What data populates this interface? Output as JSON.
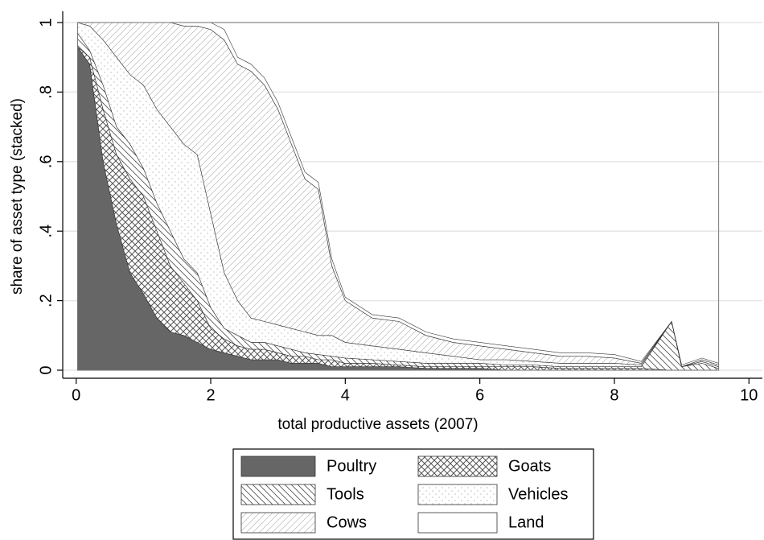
{
  "chart_data": {
    "type": "stacked-area",
    "x_label": "total productive assets (2007)",
    "y_label": "share of asset type (stacked)",
    "xlim": [
      -0.2,
      10.2
    ],
    "xticks": [
      0,
      2,
      4,
      6,
      8,
      10
    ],
    "ylim": [
      0,
      1
    ],
    "yticks": [
      0,
      {
        "value": 0.2,
        "label": ".2"
      },
      {
        "value": 0.4,
        "label": ".4"
      },
      {
        "value": 0.6,
        "label": ".6"
      },
      {
        "value": 0.8,
        "label": ".8"
      },
      1
    ],
    "grid": true,
    "legend": "bottom",
    "x": [
      0.02,
      0.2,
      0.4,
      0.6,
      0.8,
      1.0,
      1.2,
      1.4,
      1.6,
      1.8,
      2.0,
      2.2,
      2.4,
      2.6,
      2.8,
      3.0,
      3.2,
      3.4,
      3.6,
      3.8,
      4.0,
      4.4,
      4.8,
      5.2,
      5.6,
      6.0,
      6.4,
      6.8,
      7.2,
      7.6,
      8.0,
      8.4,
      8.85,
      9.0,
      9.3,
      9.55
    ],
    "series": [
      {
        "name": "Poultry",
        "color": "#666666",
        "pattern": "solid",
        "values": [
          0.93,
          0.88,
          0.6,
          0.42,
          0.28,
          0.22,
          0.15,
          0.11,
          0.1,
          0.08,
          0.06,
          0.05,
          0.04,
          0.03,
          0.03,
          0.03,
          0.02,
          0.02,
          0.02,
          0.01,
          0.01,
          0.01,
          0.01,
          0.005,
          0.005,
          0.005,
          0,
          0,
          0,
          0,
          0,
          0,
          0,
          0,
          0,
          0
        ]
      },
      {
        "name": "Goats",
        "color": "#555555",
        "pattern": "crosshatch",
        "values": [
          0,
          0.02,
          0.15,
          0.2,
          0.27,
          0.28,
          0.25,
          0.19,
          0.15,
          0.12,
          0.06,
          0.04,
          0.03,
          0.03,
          0.03,
          0.02,
          0.02,
          0.02,
          0.01,
          0.02,
          0.01,
          0.01,
          0.005,
          0.005,
          0.005,
          0.005,
          0.01,
          0.01,
          0.005,
          0.005,
          0.005,
          0.005,
          0,
          0,
          0,
          0
        ]
      },
      {
        "name": "Tools",
        "color": "#555555",
        "pattern": "backslash",
        "values": [
          0.04,
          0.02,
          0.07,
          0.08,
          0.1,
          0.08,
          0.08,
          0.1,
          0.07,
          0.08,
          0.06,
          0.03,
          0.03,
          0.02,
          0.02,
          0.02,
          0.02,
          0.01,
          0.015,
          0.01,
          0.015,
          0.01,
          0.01,
          0.01,
          0.01,
          0.01,
          0.005,
          0.005,
          0.005,
          0.005,
          0.005,
          0.005,
          0.14,
          0.01,
          0.02,
          0.005
        ]
      },
      {
        "name": "Vehicles",
        "color": "#999999",
        "pattern": "dots",
        "values": [
          0.03,
          0.07,
          0.13,
          0.2,
          0.2,
          0.24,
          0.27,
          0.3,
          0.33,
          0.34,
          0.27,
          0.16,
          0.1,
          0.07,
          0.06,
          0.06,
          0.06,
          0.06,
          0.055,
          0.06,
          0.045,
          0.04,
          0.035,
          0.03,
          0.02,
          0.01,
          0.015,
          0.01,
          0.01,
          0.01,
          0.01,
          0.005,
          0,
          0,
          0.005,
          0.005
        ]
      },
      {
        "name": "Cows",
        "color": "#aaaaaa",
        "pattern": "slash",
        "values": [
          0,
          0.01,
          0.05,
          0.1,
          0.15,
          0.18,
          0.25,
          0.3,
          0.34,
          0.37,
          0.53,
          0.67,
          0.68,
          0.71,
          0.68,
          0.62,
          0.53,
          0.44,
          0.42,
          0.2,
          0.12,
          0.08,
          0.08,
          0.05,
          0.04,
          0.04,
          0.03,
          0.025,
          0.02,
          0.02,
          0.015,
          0.005,
          0,
          0,
          0.005,
          0.005
        ]
      },
      {
        "name": "Land",
        "color": "#ffffff",
        "pattern": "none",
        "values": [
          0,
          0,
          0,
          0,
          0,
          0,
          0,
          0,
          0.01,
          0.01,
          0.02,
          0.03,
          0.02,
          0.02,
          0.02,
          0.02,
          0.02,
          0.02,
          0.02,
          0.02,
          0.01,
          0.01,
          0.01,
          0.01,
          0.01,
          0.01,
          0.01,
          0.01,
          0.01,
          0.01,
          0.01,
          0.005,
          0,
          0.005,
          0.005,
          0.005
        ]
      }
    ]
  }
}
